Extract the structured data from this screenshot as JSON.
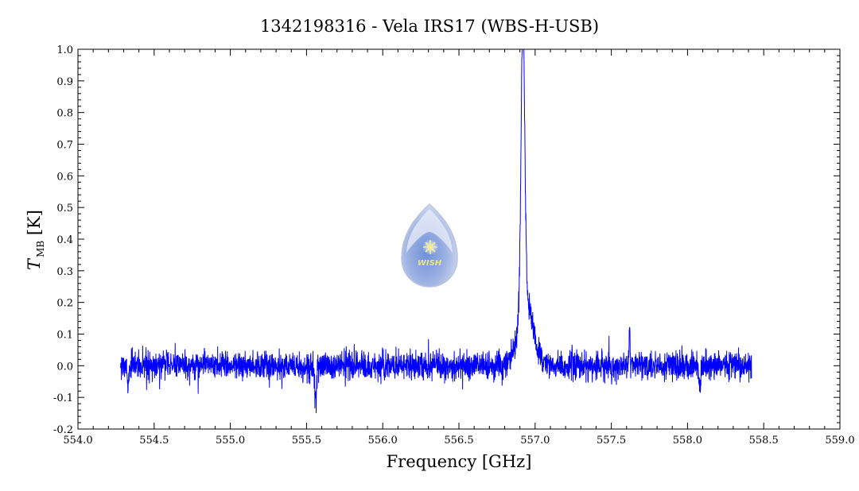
{
  "chart_data": {
    "type": "line",
    "title": "1342198316 - Vela IRS17 (WBS-H-USB)",
    "xlabel": "Frequency [GHz]",
    "ylabel": {
      "main": "T",
      "sub": "MB",
      "unit": " [K]"
    },
    "xlim": [
      554.0,
      559.0
    ],
    "ylim": [
      -0.2,
      1.0
    ],
    "x_ticks": [
      "554.0",
      "554.5",
      "555.0",
      "555.5",
      "556.0",
      "556.5",
      "557.0",
      "557.5",
      "558.0",
      "558.5",
      "559.0"
    ],
    "y_ticks": [
      "-0.2",
      "-0.1",
      "0.0",
      "0.1",
      "0.2",
      "0.3",
      "0.4",
      "0.5",
      "0.6",
      "0.7",
      "0.8",
      "0.9",
      "1.0"
    ],
    "grid": false,
    "legend": "none",
    "series": [
      {
        "color": "#0000ff",
        "x_range": [
          554.28,
          558.42
        ],
        "noise_rms": 0.022,
        "features": [
          {
            "type": "emission",
            "center": 556.92,
            "peak": 0.88,
            "width": 0.012
          },
          {
            "type": "emission",
            "center": 556.94,
            "peak": 0.18,
            "width": 0.05
          },
          {
            "type": "dip",
            "center": 554.33,
            "depth": -0.09
          },
          {
            "type": "dip",
            "center": 555.56,
            "depth": -0.13
          },
          {
            "type": "spike",
            "center": 557.62,
            "peak": 0.12
          },
          {
            "type": "dip",
            "center": 558.08,
            "depth": -0.1
          }
        ]
      }
    ]
  },
  "logo": {
    "text": "WISH",
    "icon": "water-drop-star-icon"
  }
}
